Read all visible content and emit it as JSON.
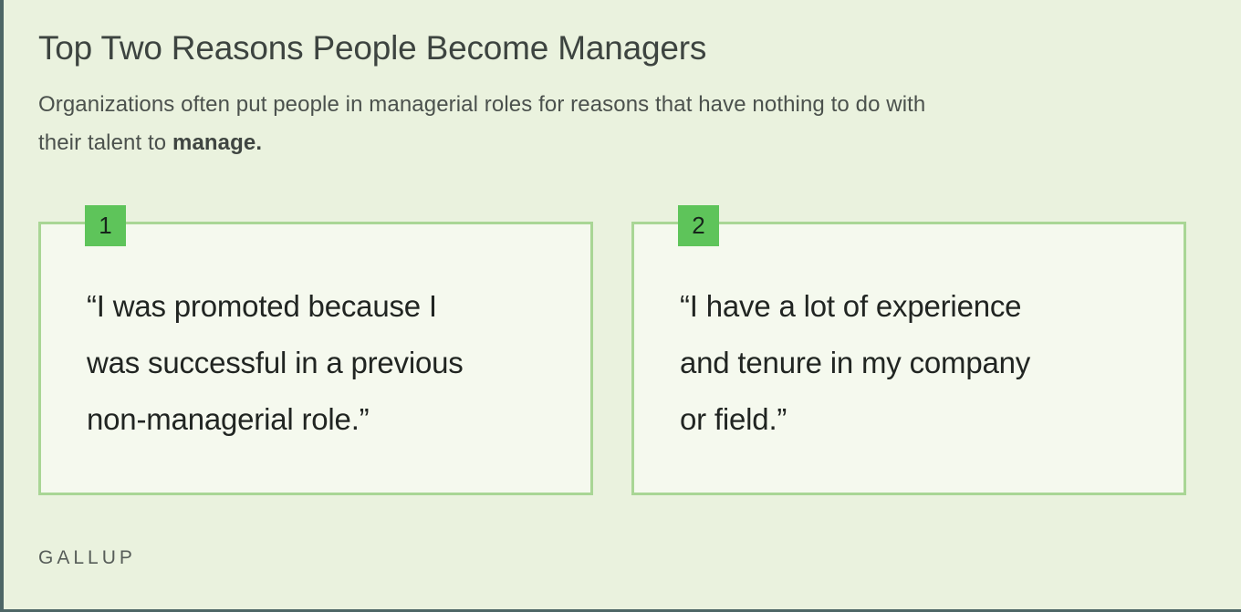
{
  "header": {
    "title": "Top Two Reasons People Become Managers",
    "subtitle": {
      "line1": "Organizations often put people in managerial roles for reasons that have nothing to do with",
      "line2": "their talent to ",
      "bold": "manage."
    }
  },
  "cards": [
    {
      "number": "1",
      "quote_lines": [
        "“I was promoted because I",
        "was successful in a previous",
        "non-managerial role.”"
      ]
    },
    {
      "number": "2",
      "quote_lines": [
        "“I have a lot of experience",
        "and tenure in my company",
        "or field.”"
      ]
    }
  ],
  "footer": {
    "brand": "GALLUP"
  },
  "colors": {
    "background": "#eaf2de",
    "card_background": "#f5f9ee",
    "card_border": "#a9d695",
    "badge_green": "#5ec45a",
    "frame_edge": "#4d6666",
    "title_text": "#3d4440",
    "quote_text": "#212522"
  }
}
